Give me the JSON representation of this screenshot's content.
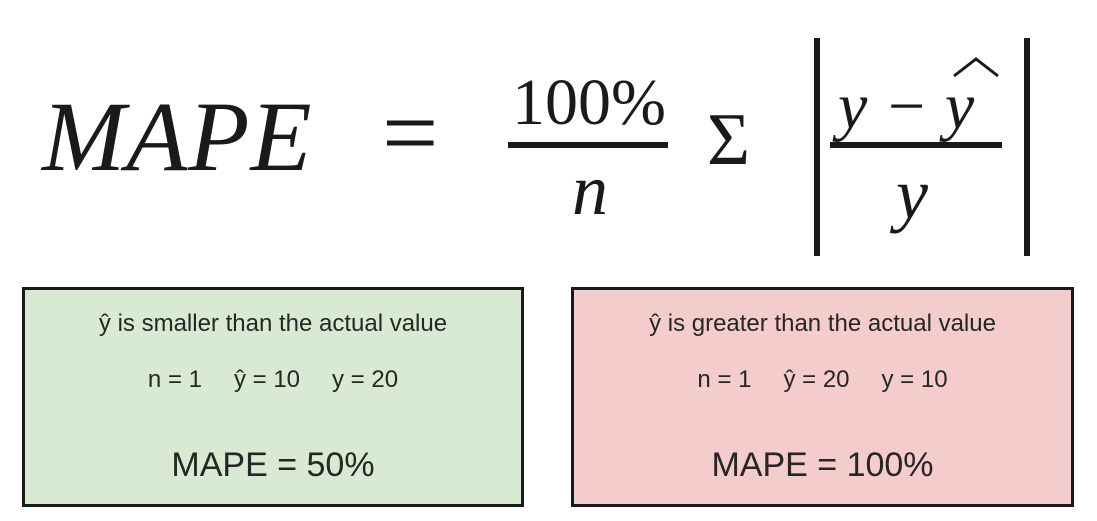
{
  "formula": {
    "lhs": "MAPE",
    "equals": "=",
    "numerator": "100%",
    "denominator": "n",
    "sum_symbol": "Σ",
    "inner_numerator": "y − y",
    "inner_denominator": "y"
  },
  "cases": [
    {
      "heading": "ŷ is smaller than the actual value",
      "n": "n = 1",
      "yhat": "ŷ = 10",
      "y": "y = 20",
      "result": "MAPE = 50%",
      "color": "#d9ead3"
    },
    {
      "heading": "ŷ is greater than the actual value",
      "n": "n = 1",
      "yhat": "ŷ = 20",
      "y": "y = 10",
      "result": "MAPE = 100%",
      "color": "#f4cccc"
    }
  ]
}
